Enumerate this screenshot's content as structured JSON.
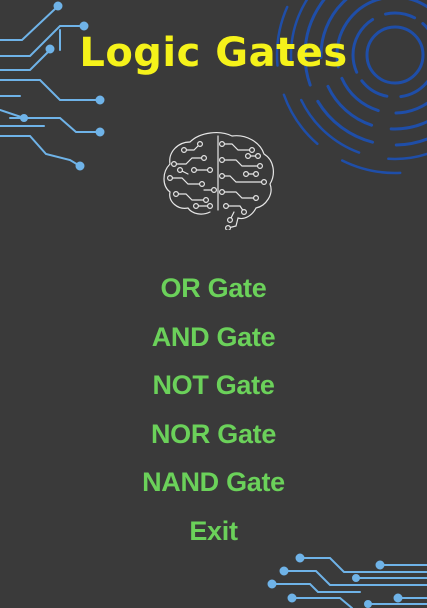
{
  "title": "Logic Gates",
  "menu": {
    "items": [
      {
        "label": "OR Gate"
      },
      {
        "label": "AND Gate"
      },
      {
        "label": "NOT Gate"
      },
      {
        "label": "NOR Gate"
      },
      {
        "label": "NAND Gate"
      },
      {
        "label": "Exit"
      }
    ]
  },
  "colors": {
    "background": "#3a3a3a",
    "title": "#f5f21a",
    "menu": "#6bd15a",
    "circuit_light": "#6fb3e8",
    "circuit_dark": "#1f4ea8",
    "brain": "#e6e6e6"
  },
  "icons": {
    "brain": "brain-circuit-icon",
    "top_left": "circuit-lines-decoration",
    "top_right": "concentric-arcs-decoration",
    "bottom_right": "circuit-lines-decoration"
  }
}
